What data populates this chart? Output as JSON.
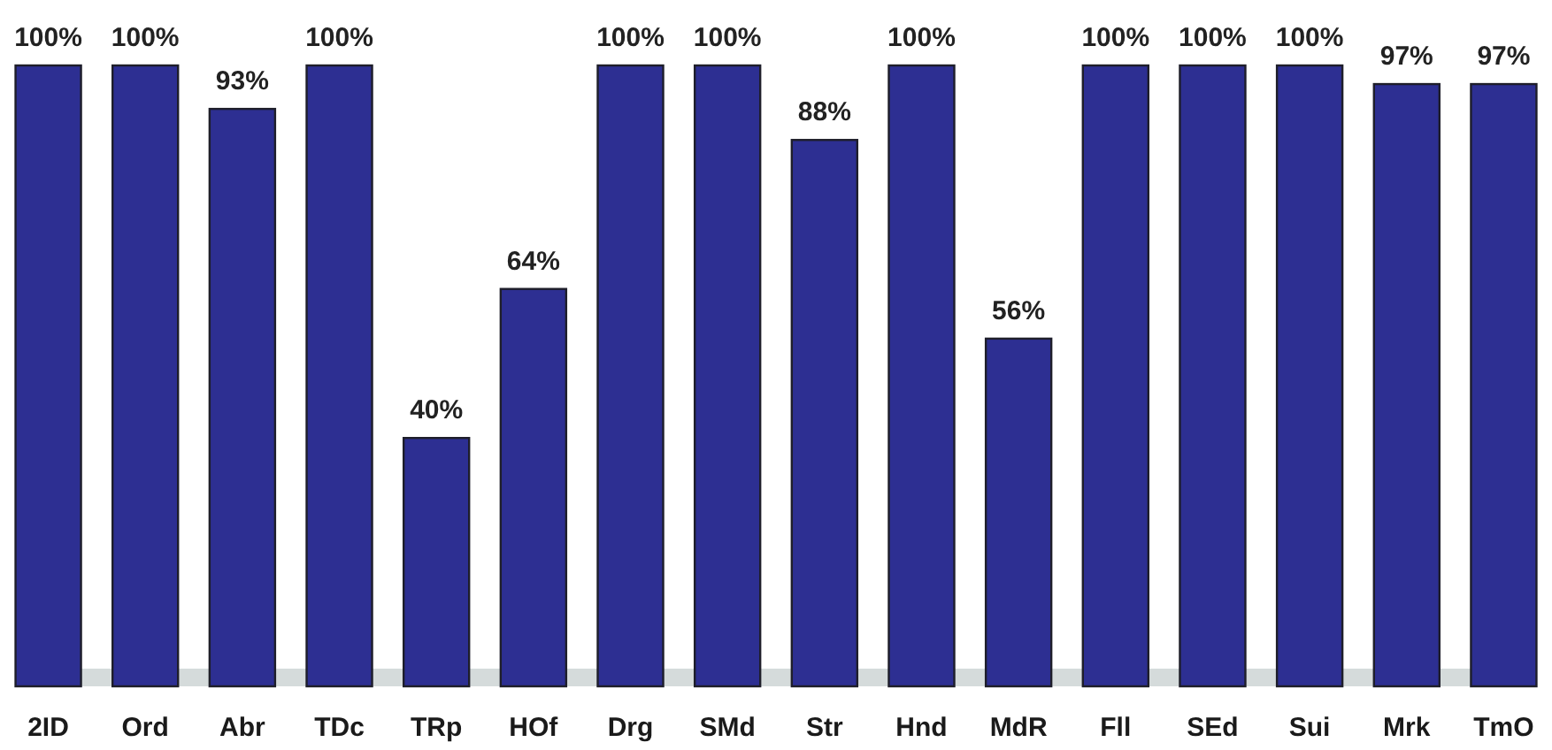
{
  "chart_data": {
    "type": "bar",
    "categories": [
      "2ID",
      "Ord",
      "Abr",
      "TDc",
      "TRp",
      "HOf",
      "Drg",
      "SMd",
      "Str",
      "Hnd",
      "MdR",
      "Fll",
      "SEd",
      "Sui",
      "Mrk",
      "TmO"
    ],
    "values": [
      100,
      100,
      93,
      100,
      40,
      64,
      100,
      100,
      88,
      100,
      56,
      100,
      100,
      100,
      97,
      97
    ],
    "value_labels": [
      "100%",
      "100%",
      "93%",
      "100%",
      "40%",
      "64%",
      "100%",
      "100%",
      "88%",
      "100%",
      "56%",
      "100%",
      "100%",
      "100%",
      "97%",
      "97%"
    ],
    "color": "#2d2f92"
  }
}
